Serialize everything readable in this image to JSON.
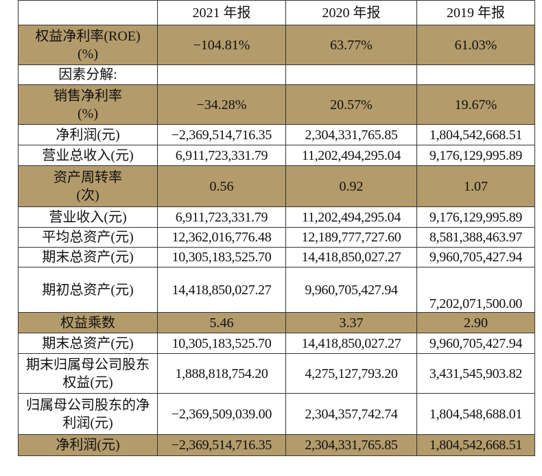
{
  "header": [
    "",
    "2021 年报",
    "2020 年报",
    "2019 年报"
  ],
  "rows": [
    {
      "label": "权益净利率(ROE)(%)",
      "values": [
        "−104.81%",
        "63.77%",
        "61.03%"
      ],
      "highlight": true
    },
    {
      "label": "因素分解:",
      "values": [
        "",
        "",
        ""
      ],
      "highlight": false
    },
    {
      "label": "销售净利率(%)",
      "values": [
        "−34.28%",
        "20.57%",
        "19.67%"
      ],
      "highlight": true
    },
    {
      "label": "净利润(元)",
      "values": [
        "−2,369,514,716.35",
        "2,304,331,765.85",
        "1,804,542,668.51"
      ],
      "highlight": false
    },
    {
      "label": "营业总收入(元)",
      "values": [
        "6,911,723,331.79",
        "11,202,494,295.04",
        "9,176,129,995.89"
      ],
      "highlight": false
    },
    {
      "label": "资产周转率(次)",
      "values": [
        "0.56",
        "0.92",
        "1.07"
      ],
      "highlight": true
    },
    {
      "label": "营业收入(元)",
      "values": [
        "6,911,723,331.79",
        "11,202,494,295.04",
        "9,176,129,995.89"
      ],
      "highlight": false
    },
    {
      "label": "平均总资产(元)",
      "values": [
        "12,362,016,776.48",
        "12,189,777,727.60",
        "8,581,388,463.97"
      ],
      "highlight": false
    },
    {
      "label": "期末总资产(元)",
      "values": [
        "10,305,183,525.70",
        "14,418,850,027.27",
        "9,960,705,427.94"
      ],
      "highlight": false
    },
    {
      "label": "期初总资产(元)",
      "values": [
        "14,418,850,027.27",
        "9,960,705,427.94",
        "7,202,071,500.00"
      ],
      "highlight": false
    },
    {
      "label": "权益乘数",
      "values": [
        "5.46",
        "3.37",
        "2.90"
      ],
      "highlight": true
    },
    {
      "label": "期末总资产(元)",
      "values": [
        "10,305,183,525.70",
        "14,418,850,027.27",
        "9,960,705,427.94"
      ],
      "highlight": false
    },
    {
      "label": "期末归属母公司股东权益(元)",
      "values": [
        "1,888,818,754.20",
        "4,275,127,793.20",
        "3,431,545,903.82"
      ],
      "highlight": false
    },
    {
      "label": "归属母公司股东的净利润(元)",
      "values": [
        "−2,369,509,039.00",
        "2,304,357,742.74",
        "1,804,548,688.01"
      ],
      "highlight": false
    },
    {
      "label": "净利润(元)",
      "values": [
        "−2,369,514,716.35",
        "2,304,331,765.85",
        "1,804,542,668.51"
      ],
      "highlight": true
    }
  ],
  "colors": {
    "highlight": "#b39b6b",
    "border": "#333333"
  }
}
